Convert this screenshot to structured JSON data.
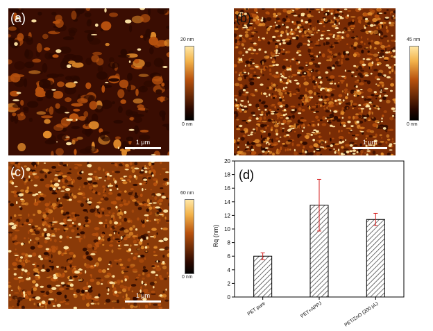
{
  "panels": [
    {
      "label": "(a)",
      "scale_label": "1 μm",
      "colorbar": {
        "max": "20 nm",
        "min": "0 nm"
      }
    },
    {
      "label": "(b)",
      "scale_label": "1 μm",
      "colorbar": {
        "max": "45 nm",
        "min": "0 nm"
      }
    },
    {
      "label": "(c)",
      "scale_label": "1 μm",
      "colorbar": {
        "max": "60 nm",
        "min": "0 nm"
      }
    }
  ],
  "colors": {
    "afm_dark": "#2a0800",
    "afm_mid": "#b8520e",
    "afm_light": "#ffe7a6",
    "bar_hatch": "#333333",
    "error_bar": "#d62020"
  },
  "chart_data": {
    "type": "bar",
    "panel_label": "(d)",
    "categories": [
      "PET pure",
      "PET+APPJ",
      "PET/ZnO (200 μL)"
    ],
    "values": [
      6.0,
      13.5,
      11.4
    ],
    "errors": [
      0.5,
      3.8,
      0.9
    ],
    "ylabel": "Rq (nm)",
    "xlabel": "",
    "ylim": [
      0,
      20
    ],
    "yticks": [
      0,
      2,
      4,
      6,
      8,
      10,
      12,
      14,
      16,
      18,
      20
    ],
    "bar_pattern": "diagonal-hatch",
    "grid": false
  }
}
